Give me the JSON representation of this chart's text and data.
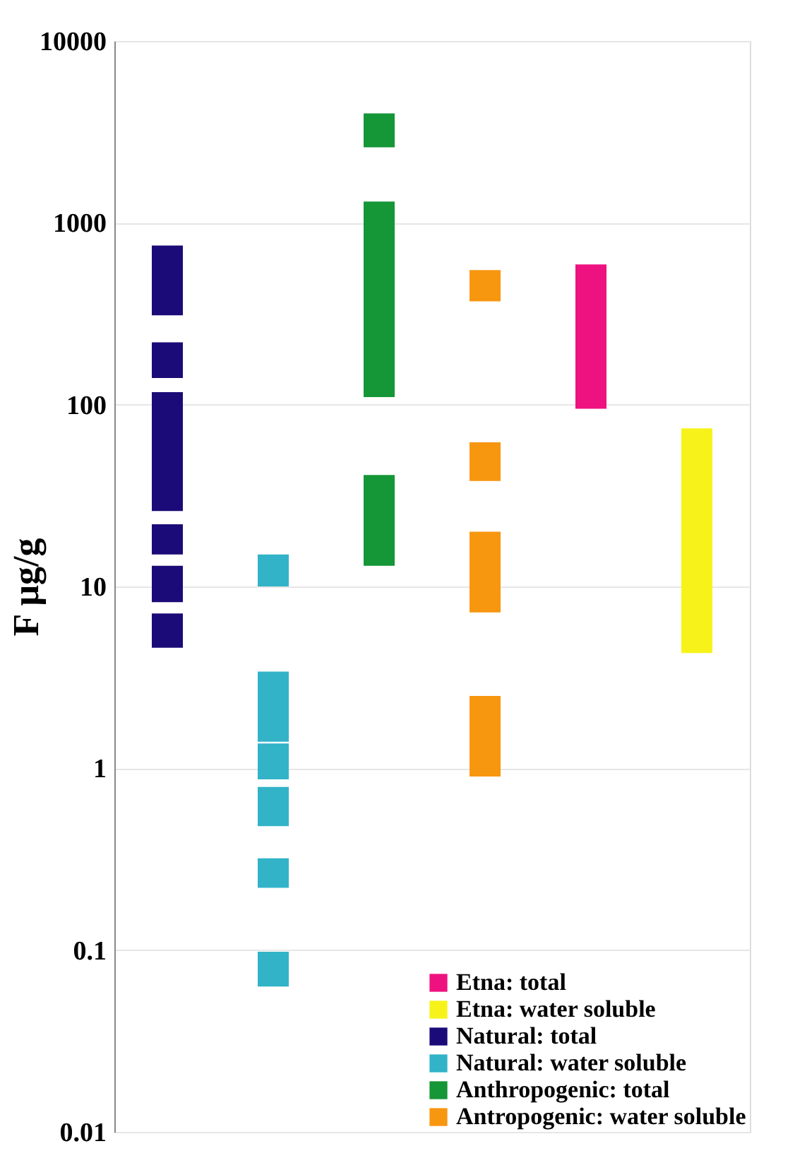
{
  "chart_data": {
    "type": "bar",
    "ylabel": "F μg/g",
    "categories": [
      null,
      null,
      null,
      null,
      null,
      null
    ],
    "log": true,
    "ylim": [
      0.01,
      10000
    ],
    "yticks": [
      0.01,
      0.1,
      1,
      10,
      100,
      1000,
      10000
    ],
    "grid": "y",
    "legend": "bottom right",
    "tick_labels": "y",
    "series": [
      {
        "name": "Etna: total",
        "color": "#ee1280",
        "values": [
          null,
          null,
          null,
          null,
          495,
          null
        ],
        "base": [
          null,
          null,
          null,
          null,
          95,
          null
        ]
      },
      {
        "name": "Etna: water soluble",
        "color": "#f7f31a",
        "values": [
          null,
          null,
          null,
          null,
          null,
          69.7
        ],
        "base": [
          null,
          null,
          null,
          null,
          null,
          4.3
        ]
      },
      {
        "name": "Natural: total",
        "color": "#1b0b78",
        "values": [
          440,
          null,
          null,
          null,
          null,
          null
        ],
        "base": [
          310,
          null,
          null,
          null,
          null,
          null
        ]
      },
      {
        "color": "#1b0b78",
        "values": [
          80,
          null,
          null,
          null,
          null,
          null
        ],
        "base": [
          140,
          null,
          null,
          null,
          null,
          null
        ]
      },
      {
        "color": "#1b0b78",
        "values": [
          91,
          null,
          null,
          null,
          null,
          null
        ],
        "base": [
          26,
          null,
          null,
          null,
          null,
          null
        ]
      },
      {
        "color": "#1b0b78",
        "values": [
          7,
          null,
          null,
          null,
          null,
          null
        ],
        "base": [
          15,
          null,
          null,
          null,
          null,
          null
        ]
      },
      {
        "color": "#1b0b78",
        "values": [
          4.8,
          null,
          null,
          null,
          null,
          null
        ],
        "base": [
          8.2,
          null,
          null,
          null,
          null,
          null
        ]
      },
      {
        "color": "#1b0b78",
        "values": [
          2.5,
          null,
          null,
          null,
          null,
          null
        ],
        "base": [
          4.6,
          null,
          null,
          null,
          null,
          null
        ]
      },
      {
        "name": "Natural: water soluble",
        "color": "#32b3c8",
        "values": [
          null,
          5,
          null,
          null,
          null,
          null
        ],
        "base": [
          null,
          10,
          null,
          null,
          null,
          null
        ]
      },
      {
        "color": "#32b3c8",
        "values": [
          null,
          2,
          null,
          null,
          null,
          null
        ],
        "base": [
          null,
          1.4,
          null,
          null,
          null,
          null
        ]
      },
      {
        "color": "#32b3c8",
        "values": [
          null,
          0.5,
          null,
          null,
          null,
          null
        ],
        "base": [
          null,
          0.87,
          null,
          null,
          null,
          null
        ]
      },
      {
        "color": "#32b3c8",
        "values": [
          null,
          0.31,
          null,
          null,
          null,
          null
        ],
        "base": [
          null,
          0.48,
          null,
          null,
          null,
          null
        ]
      },
      {
        "color": "#32b3c8",
        "values": [
          null,
          0.1,
          null,
          null,
          null,
          null
        ],
        "base": [
          null,
          0.22,
          null,
          null,
          null,
          null
        ]
      },
      {
        "color": "#32b3c8",
        "values": [
          null,
          0.035,
          null,
          null,
          null,
          null
        ],
        "base": [
          null,
          0.063,
          null,
          null,
          null,
          null
        ]
      },
      {
        "name": "Anthropogenic: total",
        "color": "#159637",
        "values": [
          null,
          null,
          1400,
          null,
          null,
          null
        ],
        "base": [
          null,
          null,
          2600,
          null,
          null,
          null
        ]
      },
      {
        "color": "#159637",
        "values": [
          null,
          null,
          1200,
          null,
          null,
          null
        ],
        "base": [
          null,
          null,
          110,
          null,
          null,
          null
        ]
      },
      {
        "color": "#159637",
        "values": [
          null,
          null,
          28,
          null,
          null,
          null
        ],
        "base": [
          null,
          null,
          13,
          null,
          null,
          null
        ]
      },
      {
        "name": "Antropogenic: water soluble",
        "color": "#f7960f",
        "values": [
          null,
          null,
          null,
          180,
          null,
          null
        ],
        "base": [
          null,
          null,
          null,
          370,
          null,
          null
        ]
      },
      {
        "color": "#f7960f",
        "values": [
          null,
          null,
          null,
          24,
          null,
          null
        ],
        "base": [
          null,
          null,
          null,
          38,
          null,
          null
        ]
      },
      {
        "color": "#f7960f",
        "values": [
          null,
          null,
          null,
          12.8,
          null,
          null
        ],
        "base": [
          null,
          null,
          null,
          7.2,
          null,
          null
        ]
      },
      {
        "color": "#f7960f",
        "values": [
          null,
          null,
          null,
          1.6,
          null,
          null
        ],
        "base": [
          null,
          null,
          null,
          0.9,
          null,
          null
        ]
      }
    ]
  }
}
